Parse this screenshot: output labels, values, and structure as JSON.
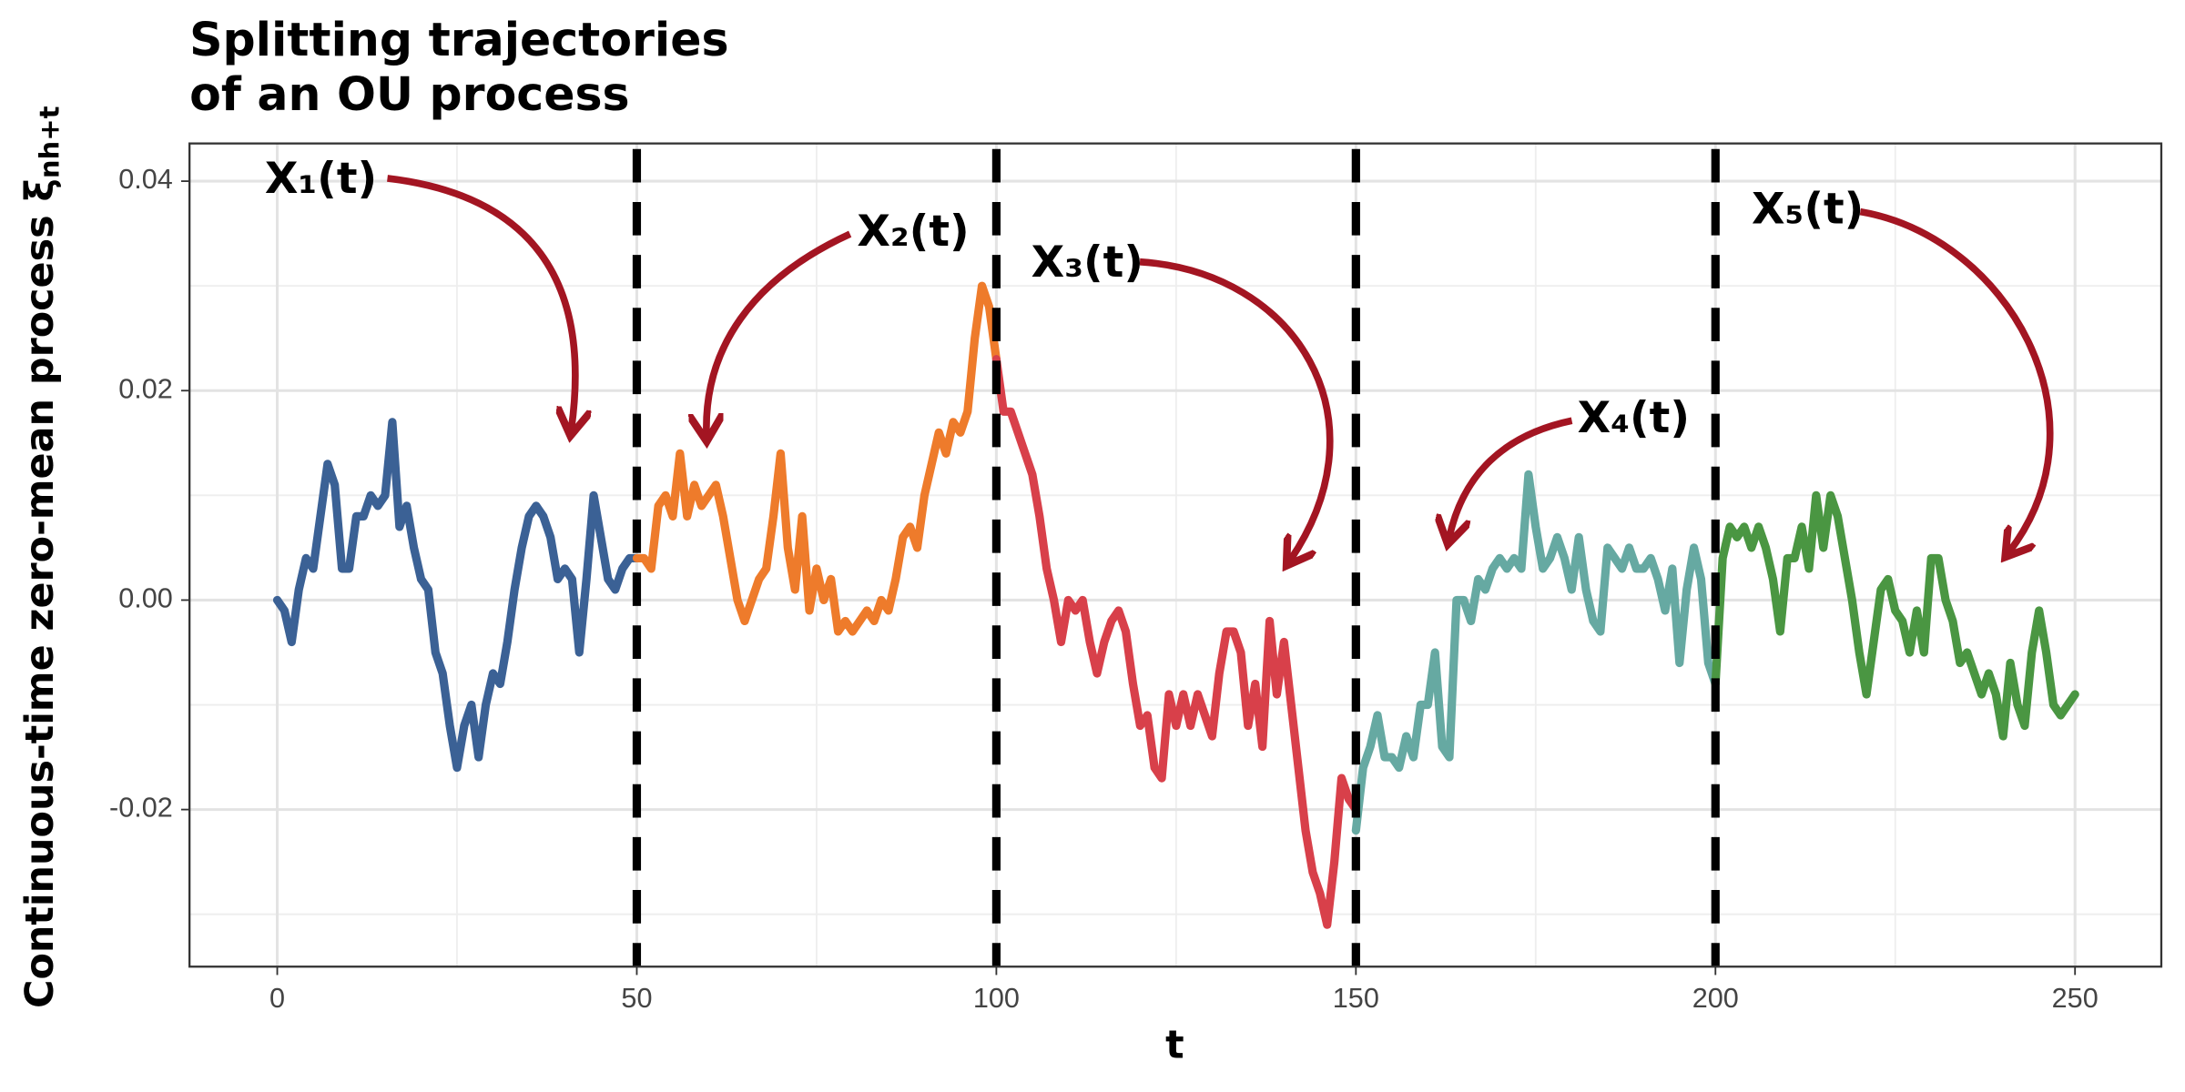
{
  "chart_data": {
    "type": "line",
    "title_lines": [
      "Splitting trajectories",
      "of an OU process"
    ],
    "x_label": "t",
    "y_label": "Continuous-time zero-mean process ξ",
    "y_label_sub": "nh+t",
    "xlim": [
      -12.2,
      262
    ],
    "ylim": [
      -0.035,
      0.0436
    ],
    "xticks": [
      0,
      50,
      100,
      150,
      200,
      250
    ],
    "yticks": [
      -0.02,
      {
        "value": 0,
        "label": "0.00"
      },
      0.02,
      0.04
    ],
    "xminor": [
      25,
      75,
      125,
      175,
      225
    ],
    "yminor": [
      -0.03,
      -0.01,
      0.01,
      0.03
    ],
    "grid": true,
    "vlines": [
      50,
      100,
      150,
      200
    ],
    "annotations": [
      "X₁(t)",
      "X₂(t)",
      "X₃(t)",
      "X₄(t)",
      "X₅(t)"
    ],
    "annotation_color": "#a31522",
    "series": [
      {
        "color": "#3b6195",
        "x": [
          0,
          1,
          2,
          3,
          4,
          5,
          6,
          7,
          8,
          9,
          10,
          11,
          12,
          13,
          14,
          15,
          16,
          17,
          18,
          19,
          20,
          21,
          22,
          23,
          24,
          25,
          26,
          27,
          28,
          29,
          30,
          31,
          32,
          33,
          34,
          35,
          36,
          37,
          38,
          39,
          40,
          41,
          42,
          43,
          44,
          45,
          46,
          47,
          48,
          49,
          50
        ],
        "values": [
          0,
          -0.001,
          -0.004,
          0.001,
          0.004,
          0.003,
          0.008,
          0.013,
          0.011,
          0.003,
          0.003,
          0.008,
          0.008,
          0.01,
          0.009,
          0.01,
          0.017,
          0.007,
          0.009,
          0.005,
          0.002,
          0.001,
          -0.005,
          -0.007,
          -0.012,
          -0.016,
          -0.012,
          -0.01,
          -0.015,
          -0.01,
          -0.007,
          -0.008,
          -0.004,
          0.001,
          0.005,
          0.008,
          0.009,
          0.008,
          0.006,
          0.002,
          0.003,
          0.002,
          -0.005,
          0.002,
          0.01,
          0.006,
          0.002,
          0.001,
          0.003,
          0.004,
          0.004
        ]
      },
      {
        "color": "#ee7b2b",
        "x": [
          50,
          51,
          52,
          53,
          54,
          55,
          56,
          57,
          58,
          59,
          60,
          61,
          62,
          63,
          64,
          65,
          66,
          67,
          68,
          69,
          70,
          71,
          72,
          73,
          74,
          75,
          76,
          77,
          78,
          79,
          80,
          81,
          82,
          83,
          84,
          85,
          86,
          87,
          88,
          89,
          90,
          91,
          92,
          93,
          94,
          95,
          96,
          97,
          98,
          99,
          100
        ],
        "values": [
          0.004,
          0.004,
          0.003,
          0.009,
          0.01,
          0.008,
          0.014,
          0.008,
          0.011,
          0.009,
          0.01,
          0.011,
          0.008,
          0.004,
          0.0,
          -0.002,
          0.0,
          0.002,
          0.003,
          0.008,
          0.014,
          0.005,
          0.001,
          0.008,
          -0.001,
          0.003,
          0.0,
          0.002,
          -0.003,
          -0.002,
          -0.003,
          -0.002,
          -0.001,
          -0.002,
          0.0,
          -0.001,
          0.002,
          0.006,
          0.007,
          0.005,
          0.01,
          0.013,
          0.016,
          0.014,
          0.017,
          0.016,
          0.018,
          0.025,
          0.03,
          0.028,
          0.023
        ]
      },
      {
        "color": "#d8404a",
        "x": [
          100,
          101,
          102,
          103,
          104,
          105,
          106,
          107,
          108,
          109,
          110,
          111,
          112,
          113,
          114,
          115,
          116,
          117,
          118,
          119,
          120,
          121,
          122,
          123,
          124,
          125,
          126,
          127,
          128,
          129,
          130,
          131,
          132,
          133,
          134,
          135,
          136,
          137,
          138,
          139,
          140,
          141,
          142,
          143,
          144,
          145,
          146,
          147,
          148,
          149,
          150
        ],
        "values": [
          0.023,
          0.018,
          0.018,
          0.016,
          0.014,
          0.012,
          0.008,
          0.003,
          0.0,
          -0.004,
          0.0,
          -0.001,
          0.0,
          -0.004,
          -0.007,
          -0.004,
          -0.002,
          -0.001,
          -0.003,
          -0.008,
          -0.012,
          -0.011,
          -0.016,
          -0.017,
          -0.009,
          -0.012,
          -0.009,
          -0.012,
          -0.009,
          -0.011,
          -0.013,
          -0.007,
          -0.003,
          -0.003,
          -0.005,
          -0.012,
          -0.008,
          -0.014,
          -0.002,
          -0.009,
          -0.004,
          -0.01,
          -0.016,
          -0.022,
          -0.026,
          -0.028,
          -0.031,
          -0.025,
          -0.017,
          -0.019,
          -0.02
        ]
      },
      {
        "color": "#66a9a2",
        "x": [
          150,
          151,
          152,
          153,
          154,
          155,
          156,
          157,
          158,
          159,
          160,
          161,
          162,
          163,
          164,
          165,
          166,
          167,
          168,
          169,
          170,
          171,
          172,
          173,
          174,
          175,
          176,
          177,
          178,
          179,
          180,
          181,
          182,
          183,
          184,
          185,
          186,
          187,
          188,
          189,
          190,
          191,
          192,
          193,
          194,
          195,
          196,
          197,
          198,
          199,
          200
        ],
        "values": [
          -0.022,
          -0.016,
          -0.014,
          -0.011,
          -0.015,
          -0.015,
          -0.016,
          -0.013,
          -0.015,
          -0.01,
          -0.01,
          -0.005,
          -0.014,
          -0.015,
          0.0,
          0.0,
          -0.002,
          0.002,
          0.001,
          0.003,
          0.004,
          0.003,
          0.004,
          0.003,
          0.012,
          0.007,
          0.003,
          0.004,
          0.006,
          0.004,
          0.001,
          0.006,
          0.001,
          -0.002,
          -0.003,
          0.005,
          0.004,
          0.003,
          0.005,
          0.003,
          0.003,
          0.004,
          0.002,
          -0.001,
          0.003,
          -0.006,
          0.001,
          0.005,
          0.002,
          -0.006,
          -0.008
        ]
      },
      {
        "color": "#4a9642",
        "x": [
          200,
          201,
          202,
          203,
          204,
          205,
          206,
          207,
          208,
          209,
          210,
          211,
          212,
          213,
          214,
          215,
          216,
          217,
          218,
          219,
          220,
          221,
          222,
          223,
          224,
          225,
          226,
          227,
          228,
          229,
          230,
          231,
          232,
          233,
          234,
          235,
          236,
          237,
          238,
          239,
          240,
          241,
          242,
          243,
          244,
          245,
          246,
          247,
          248,
          249,
          250
        ],
        "values": [
          -0.008,
          0.004,
          0.007,
          0.006,
          0.007,
          0.005,
          0.007,
          0.005,
          0.002,
          -0.003,
          0.004,
          0.004,
          0.007,
          0.003,
          0.01,
          0.005,
          0.01,
          0.008,
          0.004,
          0.0,
          -0.005,
          -0.009,
          -0.004,
          0.001,
          0.002,
          -0.001,
          -0.002,
          -0.005,
          -0.001,
          -0.005,
          0.004,
          0.004,
          0.0,
          -0.002,
          -0.006,
          -0.005,
          -0.007,
          -0.009,
          -0.007,
          -0.009,
          -0.013,
          -0.006,
          -0.01,
          -0.012,
          -0.005,
          -0.001,
          -0.005,
          -0.01,
          -0.011,
          -0.01,
          -0.009
        ]
      }
    ]
  }
}
